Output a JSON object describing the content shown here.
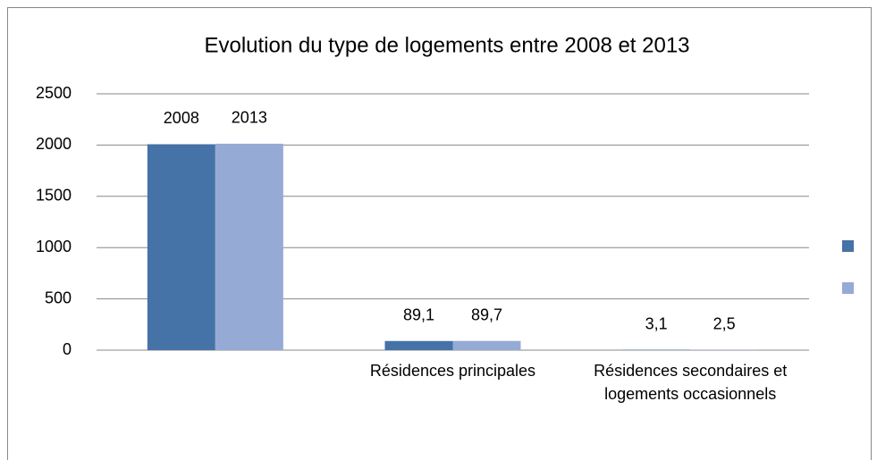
{
  "chart_data": {
    "type": "bar",
    "title": "Evolution du type de logements entre 2008 et 2013",
    "categories": [
      null,
      "Résidences principales",
      "Résidences secondaires et logements occasionnels"
    ],
    "series": [
      {
        "color": "#4572a7",
        "values": [
          2008,
          89.1,
          3.1
        ],
        "value_labels": [
          "2008",
          "89,1",
          "3,1"
        ]
      },
      {
        "color": "#95abd5",
        "values": [
          2013,
          89.7,
          2.5
        ],
        "value_labels": [
          "2013",
          "89,7",
          "2,5"
        ]
      }
    ],
    "ylim": [
      0,
      2500
    ],
    "yticks": [
      0,
      500,
      1000,
      1500,
      2000,
      2500
    ],
    "grid": true
  }
}
